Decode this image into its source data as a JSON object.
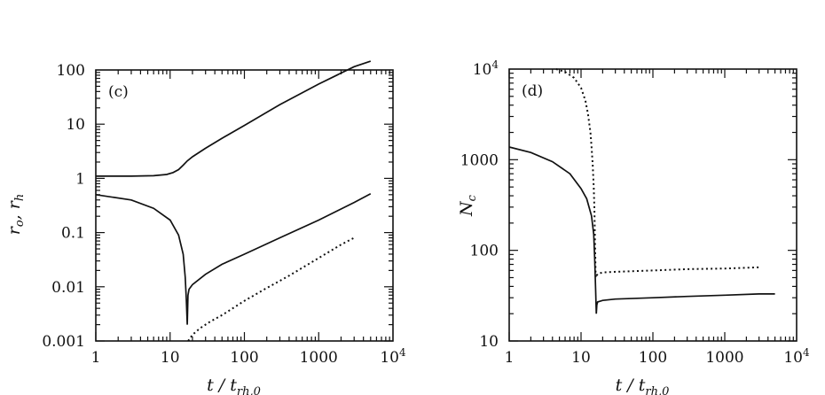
{
  "chart_data": [
    {
      "type": "line",
      "panel_label": "(c)",
      "xlabel": "t / t_rh,0",
      "xlabel_main": "t",
      "xlabel_sub": "rh,0",
      "ylabel": "r_o, r_h",
      "ylabel_text": "ro, rh",
      "x_scale": "log",
      "y_scale": "log",
      "xlim": [
        1,
        10000
      ],
      "ylim": [
        0.001,
        100
      ],
      "x_ticks": [
        1,
        10,
        100,
        1000,
        10000
      ],
      "x_tick_labels": [
        "1",
        "10",
        "100",
        "1000",
        "10⁴"
      ],
      "y_ticks": [
        0.001,
        0.01,
        0.1,
        1,
        10,
        100
      ],
      "y_tick_labels": [
        "0.001",
        "0.01",
        "0.1",
        "1",
        "10",
        "100"
      ],
      "series": [
        {
          "style": "solid",
          "x": [
            1,
            3,
            6,
            9,
            11,
            13,
            15,
            17,
            20,
            30,
            50,
            100,
            300,
            1000,
            3000,
            5000
          ],
          "y": [
            1.1,
            1.1,
            1.12,
            1.18,
            1.28,
            1.45,
            1.75,
            2.1,
            2.5,
            3.6,
            5.5,
            9.5,
            23,
            55,
            115,
            145
          ]
        },
        {
          "style": "solid",
          "x": [
            1,
            3,
            6,
            10,
            13,
            15,
            16,
            16.5,
            17,
            17.4,
            18,
            20,
            30,
            50,
            100,
            300,
            1000,
            3000,
            5000
          ],
          "y": [
            0.5,
            0.4,
            0.28,
            0.17,
            0.09,
            0.04,
            0.015,
            0.006,
            0.002,
            0.007,
            0.009,
            0.011,
            0.017,
            0.026,
            0.04,
            0.08,
            0.17,
            0.36,
            0.52
          ]
        },
        {
          "style": "dotted",
          "x": [
            17.5,
            20,
            25,
            35,
            50,
            100,
            200,
            400,
            1000,
            2000,
            3000
          ],
          "y": [
            0.001,
            0.0013,
            0.0017,
            0.0023,
            0.003,
            0.0055,
            0.0095,
            0.016,
            0.034,
            0.06,
            0.08
          ]
        }
      ]
    },
    {
      "type": "line",
      "panel_label": "(d)",
      "xlabel": "t / t_rh,0",
      "xlabel_main": "t",
      "xlabel_sub": "rh,0",
      "ylabel": "N_c",
      "ylabel_text": "Nc",
      "x_scale": "log",
      "y_scale": "log",
      "xlim": [
        1,
        10000
      ],
      "ylim": [
        10,
        10000
      ],
      "x_ticks": [
        1,
        10,
        100,
        1000,
        10000
      ],
      "x_tick_labels": [
        "1",
        "10",
        "100",
        "1000",
        "10⁴"
      ],
      "y_ticks": [
        10,
        100,
        1000,
        10000
      ],
      "y_tick_labels": [
        "10",
        "100",
        "1000",
        "10⁴"
      ],
      "series": [
        {
          "style": "solid",
          "x": [
            1,
            2,
            4,
            7,
            10,
            12,
            14,
            15,
            15.5,
            16,
            16.3,
            16.6,
            17,
            20,
            30,
            100,
            300,
            1000,
            3000,
            5000
          ],
          "y": [
            1380,
            1200,
            950,
            700,
            480,
            370,
            240,
            150,
            80,
            35,
            20,
            25,
            27,
            28,
            29,
            30,
            31,
            32,
            33,
            33
          ]
        },
        {
          "style": "dotted",
          "x": [
            4.5,
            6,
            8,
            10,
            11.5,
            12.5,
            13.5,
            14,
            14.5,
            15,
            15.3,
            15.6,
            16,
            17,
            20,
            30,
            100,
            300,
            1000,
            3000
          ],
          "y": [
            10000,
            9300,
            8000,
            6200,
            4500,
            3200,
            2000,
            1400,
            900,
            500,
            300,
            150,
            50,
            55,
            57,
            58,
            60,
            62,
            63,
            65
          ]
        }
      ]
    }
  ]
}
